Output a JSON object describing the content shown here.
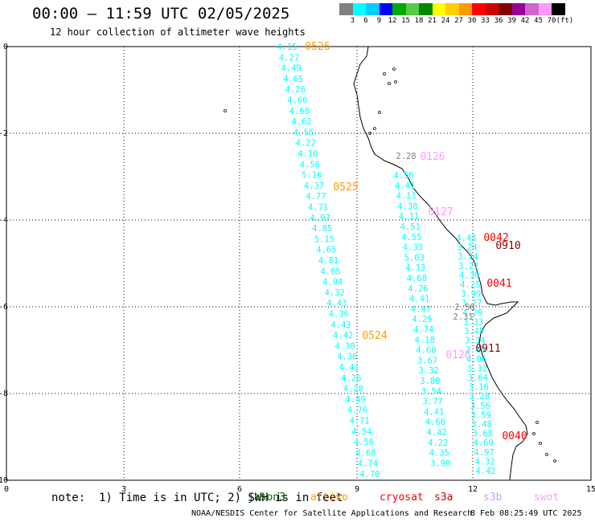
{
  "header": {
    "title": "00:00 – 11:59 UTC 02/05/2025",
    "subtitle": "12 hour collection of altimeter wave heights"
  },
  "colorbar": {
    "colors": [
      "#808080",
      "#00ffff",
      "#00ccff",
      "#0000ff",
      "#00aa00",
      "#55cc44",
      "#008800",
      "#ffff00",
      "#ffcc00",
      "#ff9900",
      "#ff0000",
      "#cc0000",
      "#880000",
      "#990099",
      "#cc66cc",
      "#ff99ff",
      "#000000"
    ],
    "labels": [
      "3",
      "6",
      "9",
      "12",
      "15",
      "18",
      "21",
      "24",
      "27",
      "30",
      "33",
      "36",
      "39",
      "42",
      "45",
      "70",
      "(ft)"
    ]
  },
  "axes": {
    "x_ticks": [
      "0",
      "3",
      "6",
      "9",
      "12",
      "15"
    ],
    "y_ticks": [
      "0",
      "-2",
      "-4",
      "-6",
      "-8",
      "-10"
    ]
  },
  "note": "note:  1) Time is in UTC; 2) SWH is in feet",
  "legend": [
    {
      "label": "jason3",
      "color": "#006600"
    },
    {
      "label": "altiko",
      "color": "#ff9900"
    },
    {
      "label": "cryosat",
      "color": "#ff0000"
    },
    {
      "label": "s3a",
      "color": "#cc0000"
    },
    {
      "label": "s3b",
      "color": "#cc99ff"
    },
    {
      "label": "swot",
      "color": "#ff99ff"
    }
  ],
  "footer": {
    "credit": "NOAA/NESDIS Center for Satellite Applications and Research",
    "timestamp": "8 Feb 08:25:49 UTC 2025"
  },
  "tracks": [
    {
      "name": "track-west",
      "color": "#00ffff",
      "xs": [
        357,
        373
      ],
      "ys": [
        58,
        590
      ],
      "values": [
        "4.15",
        "4.27",
        "4.49",
        "4.65",
        "4.26",
        "4.60",
        "4.68",
        "4.62",
        "4.55",
        "4.22",
        "4.10",
        "4.56",
        "5.16",
        "4.37",
        "4.77",
        "4.71",
        "4.97",
        "4.85",
        "5.15",
        "4.65",
        "4.81",
        "4.65",
        "4.94",
        "4.32",
        "4.43",
        "4.36",
        "4.43",
        "4.42",
        "4.30",
        "4.36",
        "4.41",
        "4.26",
        "4.28",
        "4.49",
        "4.76",
        "4.71",
        "4.54",
        "4.56",
        "4.68",
        "4.74",
        "4.70"
      ],
      "step": 13.6,
      "x0": 357,
      "x1": 460
    },
    {
      "name": "track-mid",
      "color": "#00ffff",
      "values": [
        "4.56",
        "4.41",
        "4.11",
        "4.38",
        "4.11",
        "4.51",
        "4.55",
        "4.33",
        "5.03",
        "4.13",
        "4.68",
        "4.26",
        "4.41",
        "4.47",
        "4.25",
        "4.74",
        "4.18",
        "4.60",
        "3.67",
        "3.32",
        "3.80",
        "3.54",
        "3.77",
        "4.41",
        "4.66",
        "4.42",
        "4.22",
        "4.35",
        "3.90"
      ],
      "y0": 222,
      "step": 13.2,
      "x0": 502,
      "x1": 545
    },
    {
      "name": "track-east",
      "color": "#00ffff",
      "values": [
        "4.43",
        "3.24",
        "3.24",
        "3.27",
        "4.39",
        "4.25",
        "3.99",
        "3.27",
        "4.29",
        "3.33",
        "3.45",
        "3.34",
        "3.46",
        "4.06",
        "3.32",
        "3.64",
        "3.16",
        "3.28",
        "3.56",
        "3.59",
        "3.48",
        "3.68",
        "4.69",
        "4.97",
        "4.32",
        "4.42"
      ],
      "y0": 297,
      "step": 11.5,
      "x0": 580,
      "x1": 600
    }
  ],
  "track_labels": [
    {
      "text": "0526",
      "color": "#ff9900"
    },
    {
      "text": "0525",
      "color": "#ff9900"
    },
    {
      "text": "0524",
      "color": "#ff9900"
    },
    {
      "text": "0126",
      "color": "#ff99ff"
    },
    {
      "text": "0127",
      "color": "#ff99ff"
    },
    {
      "text": "0126",
      "color": "#ff99ff"
    },
    {
      "text": "0042",
      "color": "#ff0000"
    },
    {
      "text": "0910",
      "color": "#880000"
    },
    {
      "text": "0041",
      "color": "#ff0000"
    },
    {
      "text": "0911",
      "color": "#880000"
    },
    {
      "text": "0040",
      "color": "#ff0000"
    }
  ],
  "gray_values": [
    "2.56",
    "2.31",
    "2.28"
  ]
}
